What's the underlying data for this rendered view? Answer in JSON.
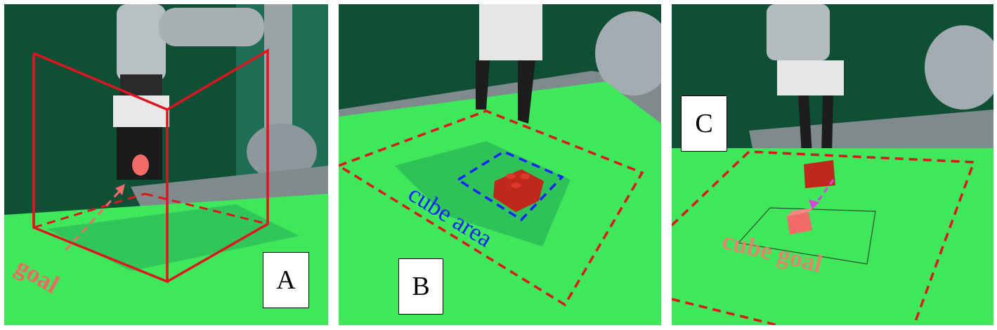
{
  "panels": [
    {
      "id": "A",
      "label": "A",
      "annotation": "goal"
    },
    {
      "id": "B",
      "label": "B",
      "annotation": "cube area"
    },
    {
      "id": "C",
      "label": "C",
      "annotation": "cube goal"
    }
  ],
  "colors": {
    "floor_green": "#3ee85a",
    "wall_green": "#0f5a3a",
    "red_box": "#e0141e",
    "blue_box": "#1a23ff",
    "goal_pink": "#f26b6b",
    "arrow_magenta": "#e040e0"
  }
}
